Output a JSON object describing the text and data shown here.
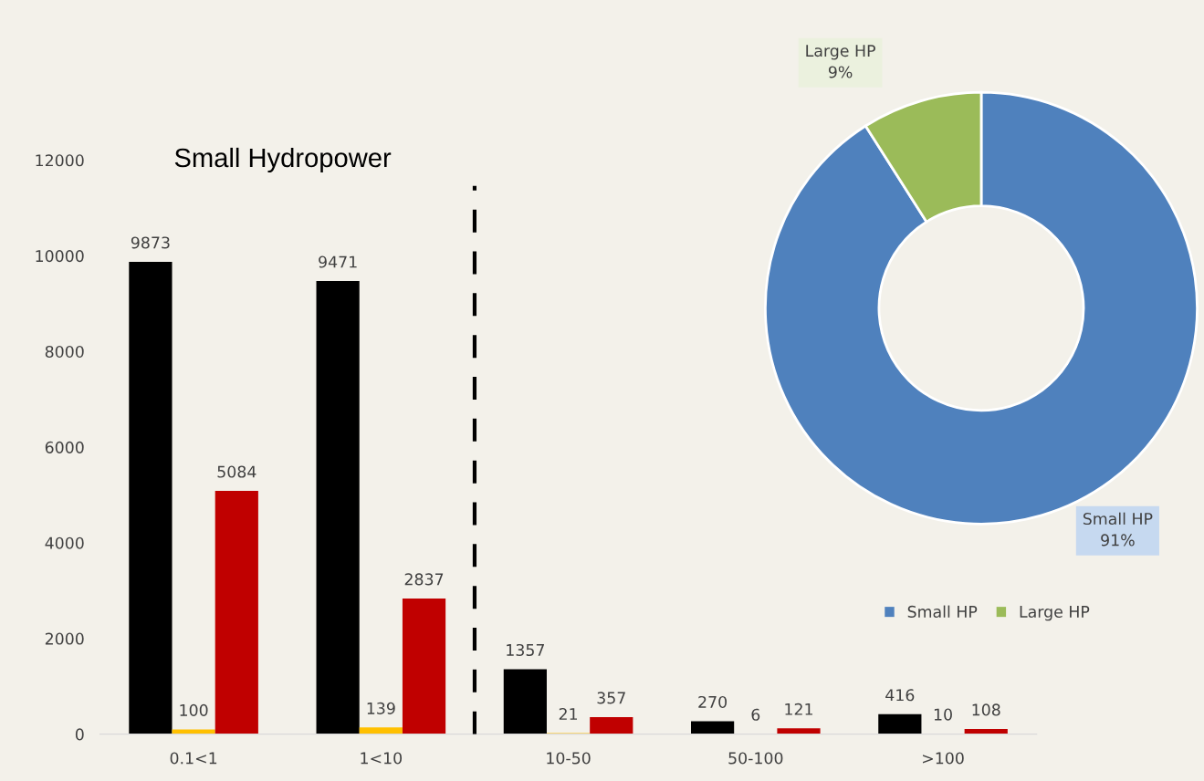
{
  "chart_data": [
    {
      "type": "bar",
      "title": "Small Hydropower",
      "categories": [
        "0.1<1",
        "1<10",
        "10-50",
        "50-100",
        ">100"
      ],
      "series": [
        {
          "color": "#000000",
          "values": [
            9873,
            9471,
            1357,
            270,
            416
          ]
        },
        {
          "color": "#ffc000",
          "values": [
            100,
            139,
            21,
            6,
            10
          ]
        },
        {
          "color": "#c00000",
          "values": [
            5084,
            2837,
            357,
            121,
            108
          ]
        }
      ],
      "ylim": [
        0,
        12000
      ],
      "yticks": [
        0,
        2000,
        4000,
        6000,
        8000,
        10000,
        12000
      ],
      "grid": false,
      "legend": false,
      "data_labels": true
    },
    {
      "type": "donut",
      "categories": [
        "Small HP",
        "Large HP"
      ],
      "values": [
        91,
        9
      ],
      "colors": [
        "#4f81bd",
        "#9bbb59"
      ],
      "value_labels": [
        "91%",
        "9%"
      ],
      "legend": "bottom"
    }
  ]
}
